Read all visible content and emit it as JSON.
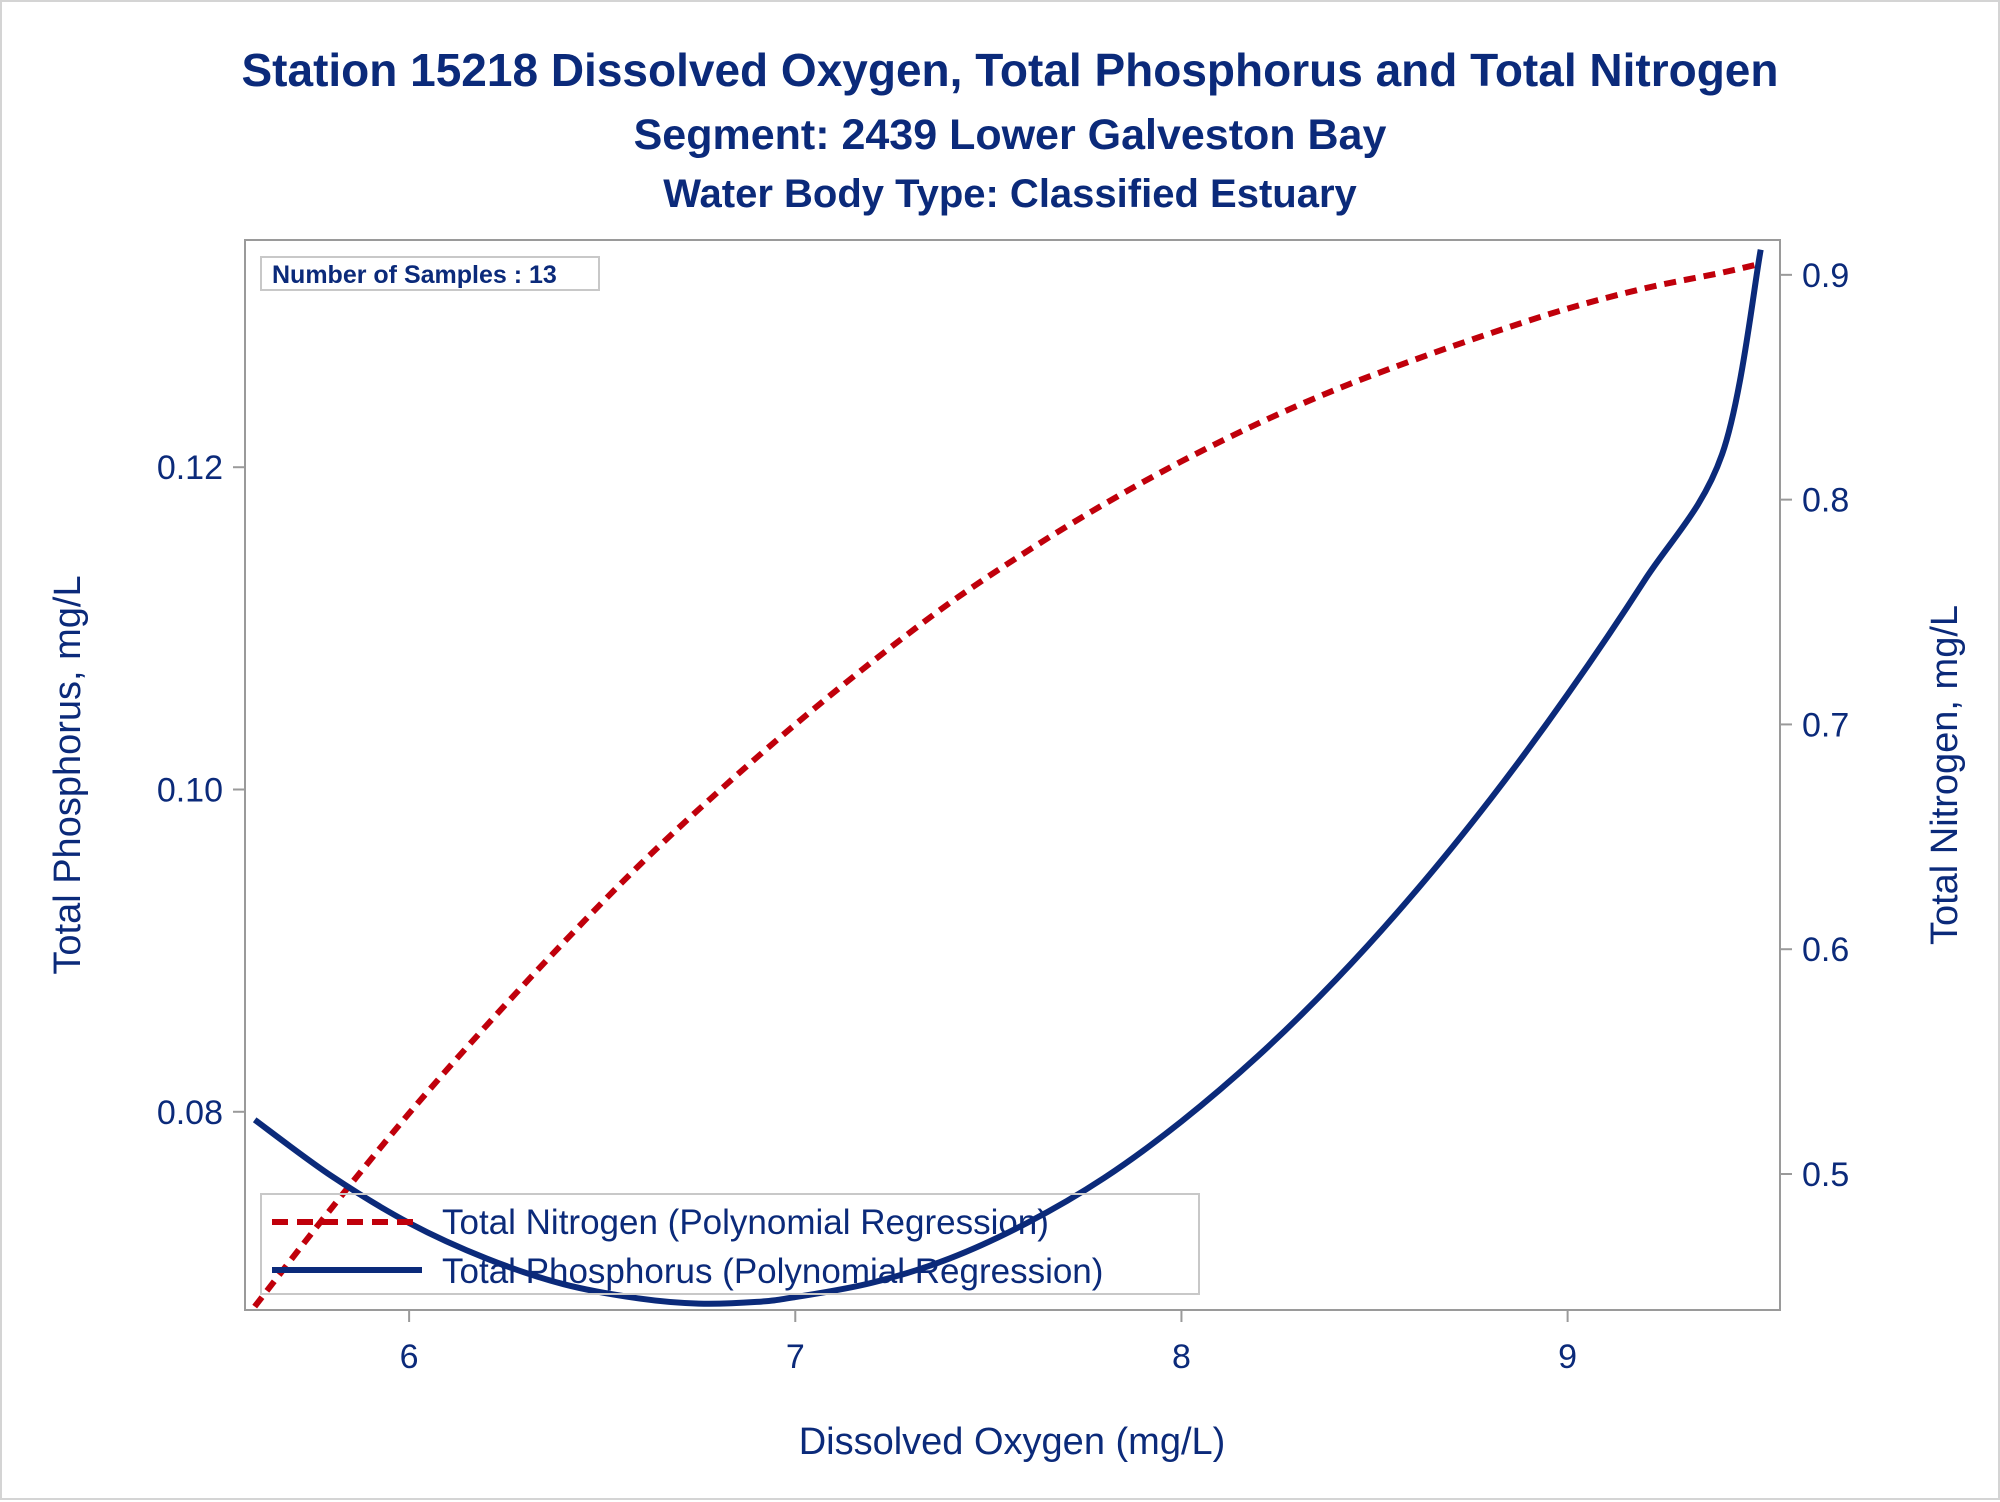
{
  "titles": {
    "line1": "Station 15218  Dissolved Oxygen, Total Phosphorus and Total Nitrogen",
    "line2": "Segment: 2439  Lower Galveston Bay",
    "line3": "Water Body Type: Classified Estuary"
  },
  "inset": {
    "samples_label": "Number of Samples : 13"
  },
  "colors": {
    "phosphorus": "#0b2a7a",
    "nitrogen": "#c0000b",
    "text": "#0b2a7a",
    "frame": "#9a9a9a"
  },
  "chart_data": {
    "type": "line",
    "title": "Station 15218  Dissolved Oxygen, Total Phosphorus and Total Nitrogen",
    "xlabel": "Dissolved Oxygen (mg/L)",
    "ylabel": "Total Phosphorus, mg/L",
    "y2label": "Total Nitrogen, mg/L",
    "xlim": [
      5.575,
      9.55
    ],
    "ylim": [
      0.0677,
      0.1341
    ],
    "y2lim": [
      0.4395,
      0.9155
    ],
    "xticks": [
      6,
      7,
      8,
      9
    ],
    "yticks": [
      0.08,
      0.1,
      0.12
    ],
    "y2ticks": [
      0.5,
      0.6,
      0.7,
      0.8,
      0.9
    ],
    "xtick_labels": [
      "6",
      "7",
      "8",
      "9"
    ],
    "ytick_labels": [
      "0.08",
      "0.10",
      "0.12"
    ],
    "y2tick_labels": [
      "0.5",
      "0.6",
      "0.7",
      "0.8",
      "0.9"
    ],
    "grid": false,
    "legend_position": "bottom-left",
    "series": [
      {
        "name": "Total Nitrogen (Polynomial Regression)",
        "axis": "right",
        "style": "dashed",
        "x": [
          5.6,
          5.8,
          6.0,
          6.2,
          6.4,
          6.6,
          6.8,
          7.0,
          7.2,
          7.4,
          7.6,
          7.8,
          8.0,
          8.2,
          8.4,
          8.6,
          8.8,
          9.0,
          9.2,
          9.4,
          9.5
        ],
        "y": [
          0.441,
          0.485,
          0.527,
          0.566,
          0.603,
          0.638,
          0.67,
          0.7,
          0.728,
          0.754,
          0.777,
          0.798,
          0.817,
          0.834,
          0.849,
          0.862,
          0.874,
          0.885,
          0.894,
          0.901,
          0.905
        ]
      },
      {
        "name": "Total Phosphorus (Polynomial Regression)",
        "axis": "left",
        "style": "solid",
        "x": [
          5.6,
          5.8,
          6.0,
          6.2,
          6.4,
          6.6,
          6.75,
          6.9,
          7.0,
          7.2,
          7.4,
          7.6,
          7.8,
          8.0,
          8.2,
          8.4,
          8.6,
          8.8,
          9.0,
          9.2,
          9.4,
          9.5
        ],
        "y": [
          0.0795,
          0.076,
          0.0731,
          0.0709,
          0.0693,
          0.0684,
          0.0681,
          0.0682,
          0.0685,
          0.0694,
          0.0709,
          0.0731,
          0.0759,
          0.0794,
          0.0835,
          0.0882,
          0.0935,
          0.0994,
          0.1059,
          0.113,
          0.1208,
          0.1335
        ]
      }
    ]
  }
}
